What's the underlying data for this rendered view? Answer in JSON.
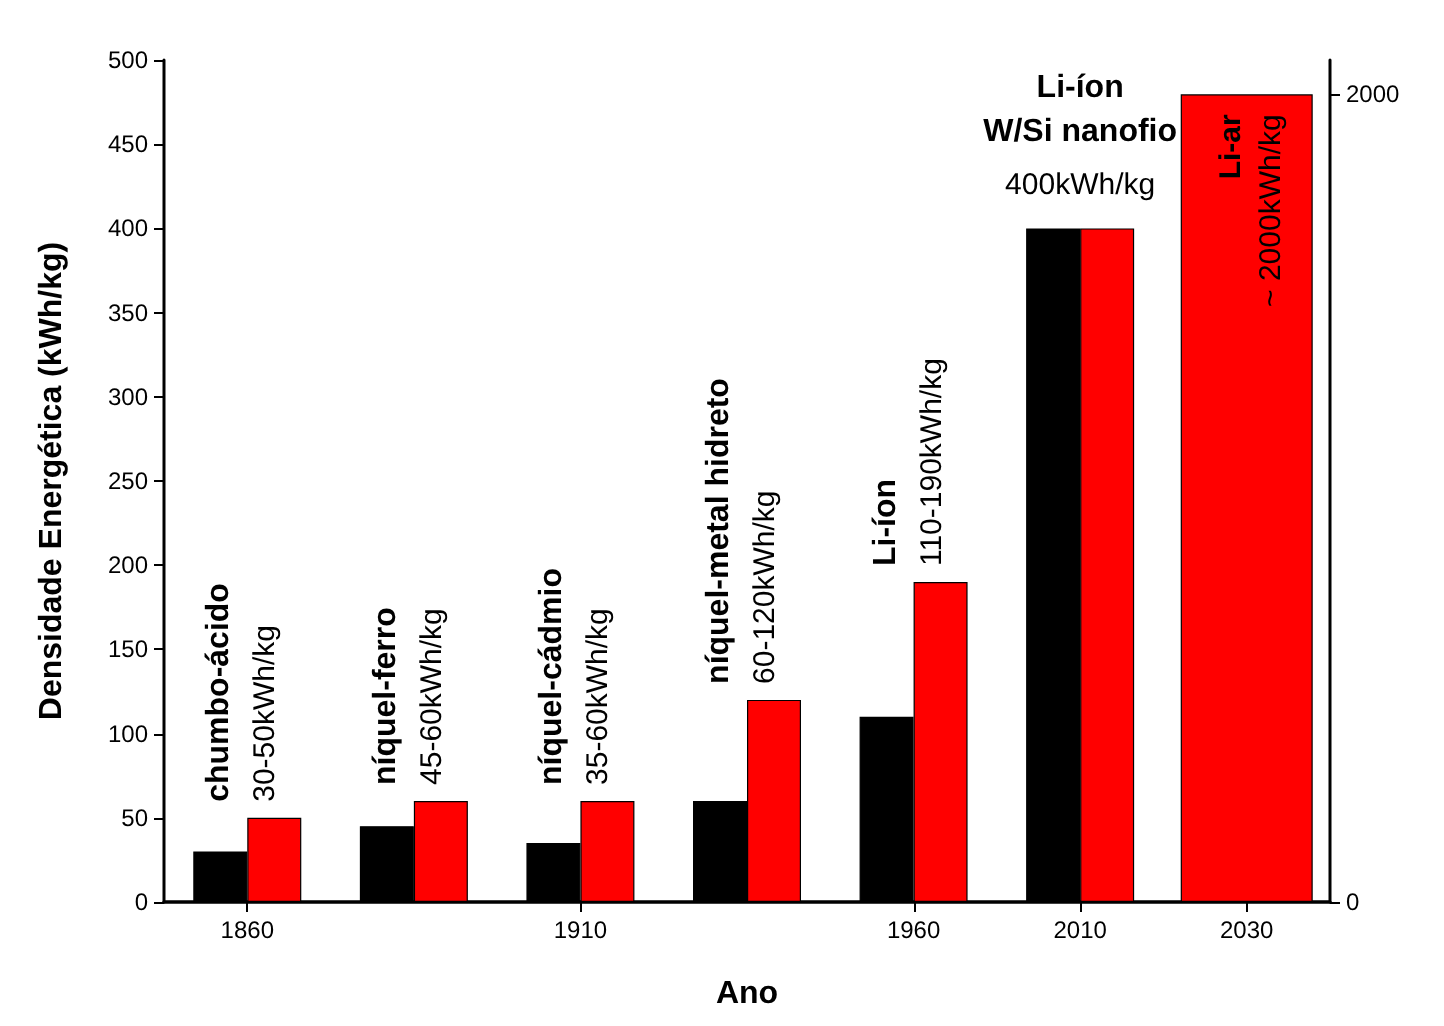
{
  "chart_data": {
    "type": "bar",
    "xlabel": "Ano",
    "ylabel": "Densidade Energética (kWh/kg)",
    "categories": [
      "1860",
      null,
      "1910",
      null,
      "1960",
      "2010",
      "2030"
    ],
    "series": [
      {
        "color": "#000000",
        "values": [
          30,
          45,
          35,
          60,
          110,
          400,
          null
        ]
      },
      {
        "color": "#ff0000",
        "values": [
          50,
          60,
          60,
          120,
          190,
          400,
          null
        ]
      },
      {
        "color": "#ff0000",
        "axis": "y2",
        "values": [
          null,
          null,
          null,
          null,
          null,
          null,
          2000
        ]
      }
    ],
    "ylim": [
      0,
      500
    ],
    "yticks": [
      0,
      50,
      100,
      150,
      200,
      250,
      300,
      350,
      400,
      450,
      500
    ],
    "y2lim": [
      0,
      2085
    ],
    "y2ticks": [
      0,
      2000
    ],
    "grid": false,
    "annotations": [
      "chumbo-ácido",
      "30-50kWh/kg",
      "níquel-ferro",
      "45-60kWh/kg",
      "níquel-cádmio",
      "35-60kWh/kg",
      "níquel-metal hidreto",
      "60-120kWh/kg",
      "Li-íon",
      "110-190kWh/kg",
      "Li-íon",
      "W/Si nanofio",
      "400kWh/kg",
      "Li-ar",
      "~ 2000kWh/kg"
    ]
  }
}
